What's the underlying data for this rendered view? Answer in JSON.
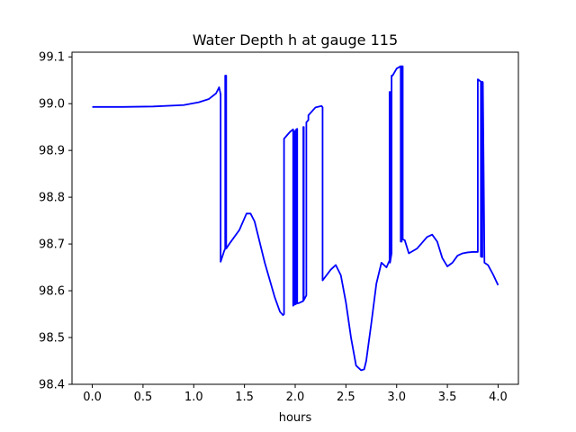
{
  "chart_data": {
    "type": "line",
    "title": "Water Depth h at gauge 115",
    "xlabel": "hours",
    "ylabel": "",
    "xlim": [
      -0.2,
      4.2
    ],
    "ylim": [
      98.4,
      99.11
    ],
    "xticks": [
      0.0,
      0.5,
      1.0,
      1.5,
      2.0,
      2.5,
      3.0,
      3.5,
      4.0
    ],
    "xtick_labels": [
      "0.0",
      "0.5",
      "1.0",
      "1.5",
      "2.0",
      "2.5",
      "3.0",
      "3.5",
      "4.0"
    ],
    "yticks": [
      98.4,
      98.5,
      98.6,
      98.7,
      98.8,
      98.9,
      99.0,
      99.1
    ],
    "ytick_labels": [
      "98.4",
      "98.5",
      "98.6",
      "98.7",
      "98.8",
      "98.9",
      "99.0",
      "99.1"
    ],
    "grid": false,
    "series": [
      {
        "color": "#0000ff",
        "x": [
          0.0,
          0.3,
          0.6,
          0.9,
          1.05,
          1.15,
          1.22,
          1.25,
          1.265,
          1.265,
          1.3,
          1.31,
          1.31,
          1.32,
          1.32,
          1.35,
          1.45,
          1.52,
          1.56,
          1.6,
          1.7,
          1.8,
          1.85,
          1.88,
          1.89,
          1.89,
          1.95,
          1.98,
          1.98,
          1.99,
          1.99,
          2.0,
          2.0,
          2.01,
          2.01,
          2.02,
          2.02,
          2.04,
          2.08,
          2.08,
          2.085,
          2.085,
          2.11,
          2.11,
          2.13,
          2.13,
          2.2,
          2.26,
          2.27,
          2.27,
          2.35,
          2.4,
          2.45,
          2.5,
          2.55,
          2.6,
          2.65,
          2.68,
          2.7,
          2.75,
          2.8,
          2.85,
          2.9,
          2.93,
          2.93,
          2.935,
          2.935,
          2.95,
          2.95,
          2.96,
          3.0,
          3.04,
          3.04,
          3.05,
          3.05,
          3.06,
          3.06,
          3.08,
          3.12,
          3.2,
          3.3,
          3.35,
          3.4,
          3.45,
          3.5,
          3.55,
          3.6,
          3.65,
          3.7,
          3.75,
          3.8,
          3.8,
          3.83,
          3.83,
          3.845,
          3.845,
          3.85,
          3.85,
          3.865,
          3.865,
          3.9,
          3.95,
          4.0
        ],
        "y": [
          98.993,
          98.993,
          98.994,
          98.997,
          99.003,
          99.01,
          99.022,
          99.035,
          99.02,
          98.662,
          98.685,
          98.69,
          99.06,
          99.06,
          98.69,
          98.7,
          98.73,
          98.765,
          98.765,
          98.748,
          98.66,
          98.585,
          98.555,
          98.548,
          98.55,
          98.925,
          98.94,
          98.945,
          98.568,
          98.57,
          98.94,
          98.942,
          98.571,
          98.572,
          98.945,
          98.946,
          98.573,
          98.574,
          98.578,
          98.95,
          98.95,
          98.58,
          98.59,
          98.96,
          98.965,
          98.975,
          98.992,
          98.995,
          98.992,
          98.622,
          98.645,
          98.655,
          98.633,
          98.575,
          98.5,
          98.44,
          98.43,
          98.432,
          98.45,
          98.53,
          98.615,
          98.66,
          98.65,
          98.665,
          99.025,
          99.025,
          98.66,
          98.68,
          99.06,
          99.06,
          99.075,
          99.08,
          98.705,
          98.705,
          99.08,
          99.08,
          98.71,
          98.708,
          98.68,
          98.69,
          98.715,
          98.72,
          98.705,
          98.67,
          98.652,
          98.66,
          98.675,
          98.68,
          98.682,
          98.683,
          98.683,
          99.052,
          99.047,
          98.673,
          98.672,
          99.047,
          99.045,
          99.04,
          98.67,
          98.66,
          98.655,
          98.635,
          98.612
        ]
      }
    ]
  }
}
